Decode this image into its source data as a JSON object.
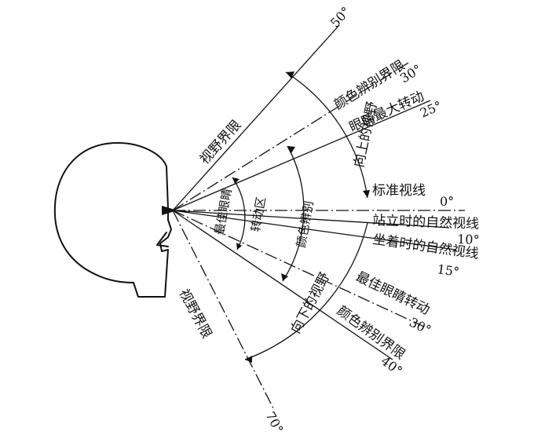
{
  "labels": {
    "upper_limit": "视野界限",
    "lower_limit": "视野界限",
    "up_view": "向上的视野",
    "down_view": "向下的视野",
    "color_limit_up": "颜色辨别界限",
    "color_limit_up_deg": "30°",
    "eye_max_rot": "眼睛最大转动",
    "eye_max_rot_deg": "25°",
    "standard_line": "标准视线",
    "standard_deg": "0°",
    "standing_natural": "站立时的自然视线",
    "standing_deg": "10°",
    "sitting_natural": "坐着时的自然视线",
    "sitting_deg": "15°",
    "best_eye_rot": "最佳眼睛转动",
    "best_eye_rot_deg": "30°",
    "color_limit_down": "颜色辨别界限",
    "color_limit_down_deg": "40°",
    "deg_50": "50°",
    "deg_70": "70°",
    "best_eye": "最佳眼睛",
    "rot_zone": "转动区",
    "color_distinguish": "颜色辨别"
  },
  "colors": {
    "ink": "#111111",
    "background": "#ffffff"
  }
}
